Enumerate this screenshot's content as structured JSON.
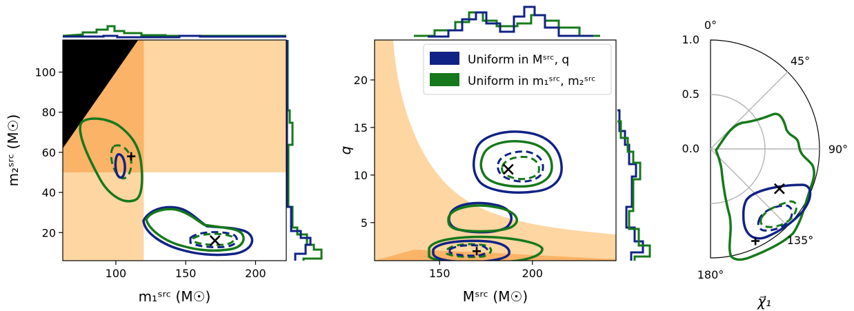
{
  "colors": {
    "blue": "#102284",
    "green": "#16781b",
    "excluded_light": "#fdd6a2",
    "excluded_dark": "#fbb367",
    "forbidden": "#000000",
    "grid": "#b3b3b3"
  },
  "chart_data": [
    {
      "type": "contour",
      "panel": "left",
      "xlabel": "m₁ˢʳᶜ (M☉)",
      "ylabel": "m₂ˢʳᶜ (M☉)",
      "xlim": [
        62,
        222
      ],
      "ylim": [
        6,
        116
      ],
      "xticks": [
        {
          "v": 100,
          "label": "100"
        },
        {
          "v": 150,
          "label": "150"
        },
        {
          "v": 200,
          "label": "200"
        }
      ],
      "yticks": [
        {
          "v": 20,
          "label": "20"
        },
        {
          "v": 40,
          "label": "40"
        },
        {
          "v": 60,
          "label": "60"
        },
        {
          "v": 80,
          "label": "80"
        },
        {
          "v": 100,
          "label": "100"
        }
      ],
      "markers": [
        {
          "symbol": "x",
          "x": 171,
          "y": 16
        },
        {
          "symbol": "+",
          "x": 111,
          "y": 58
        }
      ],
      "series": [
        {
          "name": "Uniform in Mˢʳᶜ, q",
          "color_key": "blue"
        },
        {
          "name": "Uniform in m₁ˢʳᶜ, m₂ˢʳᶜ",
          "color_key": "green"
        }
      ]
    },
    {
      "type": "contour",
      "panel": "middle",
      "xlabel": "Mˢʳᶜ (M☉)",
      "ylabel": "q",
      "xlim": [
        115,
        245
      ],
      "ylim": [
        1,
        24.2
      ],
      "xticks": [
        {
          "v": 150,
          "label": "150"
        },
        {
          "v": 200,
          "label": "200"
        }
      ],
      "yticks": [
        {
          "v": 5,
          "label": "5"
        },
        {
          "v": 10,
          "label": "10"
        },
        {
          "v": 15,
          "label": "15"
        },
        {
          "v": 20,
          "label": "20"
        }
      ],
      "markers": [
        {
          "symbol": "x",
          "x": 187,
          "y": 10.6
        },
        {
          "symbol": "+",
          "x": 170,
          "y": 2.0
        }
      ],
      "legend": {
        "placement": "top-right",
        "entries": [
          {
            "label": "Uniform in Mˢʳᶜ, q",
            "color_key": "blue"
          },
          {
            "label": "Uniform in m₁ˢʳᶜ, m₂ˢʳᶜ",
            "color_key": "green"
          }
        ]
      }
    },
    {
      "type": "polar",
      "panel": "right",
      "xlabel": "χ⃗₁",
      "radial_ticks": [
        {
          "v": 0.0,
          "label": "0.0"
        },
        {
          "v": 0.5,
          "label": "0.5"
        },
        {
          "v": 1.0,
          "label": "1.0"
        }
      ],
      "angle_ticks": [
        {
          "deg": 0,
          "label": "0°"
        },
        {
          "deg": 45,
          "label": "45°"
        },
        {
          "deg": 90,
          "label": "90°"
        },
        {
          "deg": 135,
          "label": "135°"
        },
        {
          "deg": 180,
          "label": "180°"
        }
      ],
      "markers": [
        {
          "symbol": "x",
          "r": 0.73,
          "deg": 120
        },
        {
          "symbol": "+",
          "r": 0.94,
          "deg": 154
        }
      ]
    }
  ]
}
